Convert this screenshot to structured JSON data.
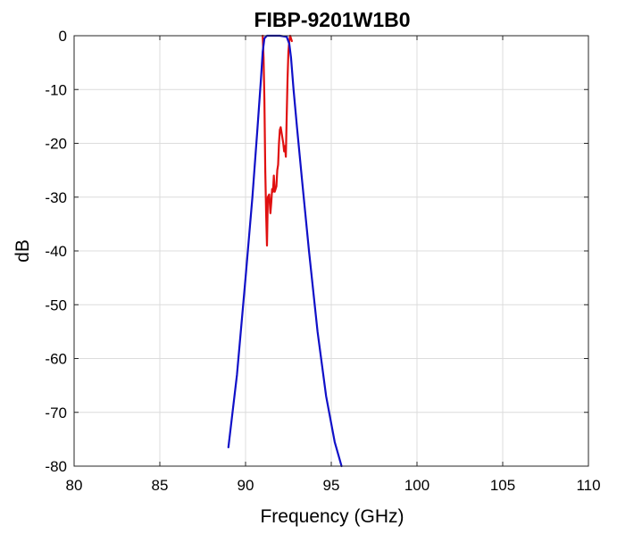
{
  "chart_data": {
    "type": "line",
    "title": "FIBP-9201W1B0",
    "xlabel": "Frequency (GHz)",
    "ylabel": "dB",
    "xlim": [
      80,
      110
    ],
    "ylim": [
      -80,
      0
    ],
    "xticks": [
      80,
      85,
      90,
      95,
      100,
      105,
      110
    ],
    "yticks": [
      0,
      -10,
      -20,
      -30,
      -40,
      -50,
      -60,
      -70,
      -80
    ],
    "xtick_labels": [
      "80",
      "85",
      "90",
      "95",
      "100",
      "105",
      "110"
    ],
    "ytick_labels": [
      "0",
      "-10",
      "-20",
      "-30",
      "-40",
      "-50",
      "-60",
      "-70",
      "-80"
    ],
    "grid": true,
    "series": [
      {
        "color": "#e01010",
        "x": [
          91.0,
          91.05,
          91.1,
          91.15,
          91.2,
          91.25,
          91.3,
          91.38,
          91.45,
          91.5,
          91.55,
          91.6,
          91.65,
          91.7,
          91.8,
          91.85,
          91.9,
          91.95,
          92.0,
          92.05,
          92.1,
          92.15,
          92.2,
          92.25,
          92.3,
          92.35,
          92.4,
          92.45,
          92.5,
          92.55,
          92.6,
          92.65,
          92.7
        ],
        "y": [
          0,
          -4,
          -12,
          -25,
          -33,
          -39,
          -30,
          -29.5,
          -33,
          -31,
          -28.5,
          -29,
          -26,
          -29,
          -28,
          -25,
          -24,
          -20,
          -17.5,
          -17,
          -18,
          -19,
          -20,
          -21.5,
          -20.5,
          -22.5,
          -15,
          -8,
          -3,
          -1,
          0,
          -0.5,
          -1
        ]
      },
      {
        "color": "#1010c8",
        "x": [
          89.0,
          89.5,
          90.0,
          90.4,
          90.7,
          90.9,
          91.0,
          91.1,
          91.25,
          91.5,
          92.0,
          92.4,
          92.55,
          92.65,
          92.8,
          93.0,
          93.3,
          93.7,
          94.2,
          94.7,
          95.2,
          95.6
        ],
        "y": [
          -76.5,
          -63,
          -45,
          -30,
          -17,
          -8,
          -3,
          -0.5,
          0,
          0,
          0,
          -0.2,
          -1.5,
          -4,
          -10,
          -17,
          -27,
          -40,
          -55,
          -67,
          -75.5,
          -80
        ]
      }
    ]
  }
}
